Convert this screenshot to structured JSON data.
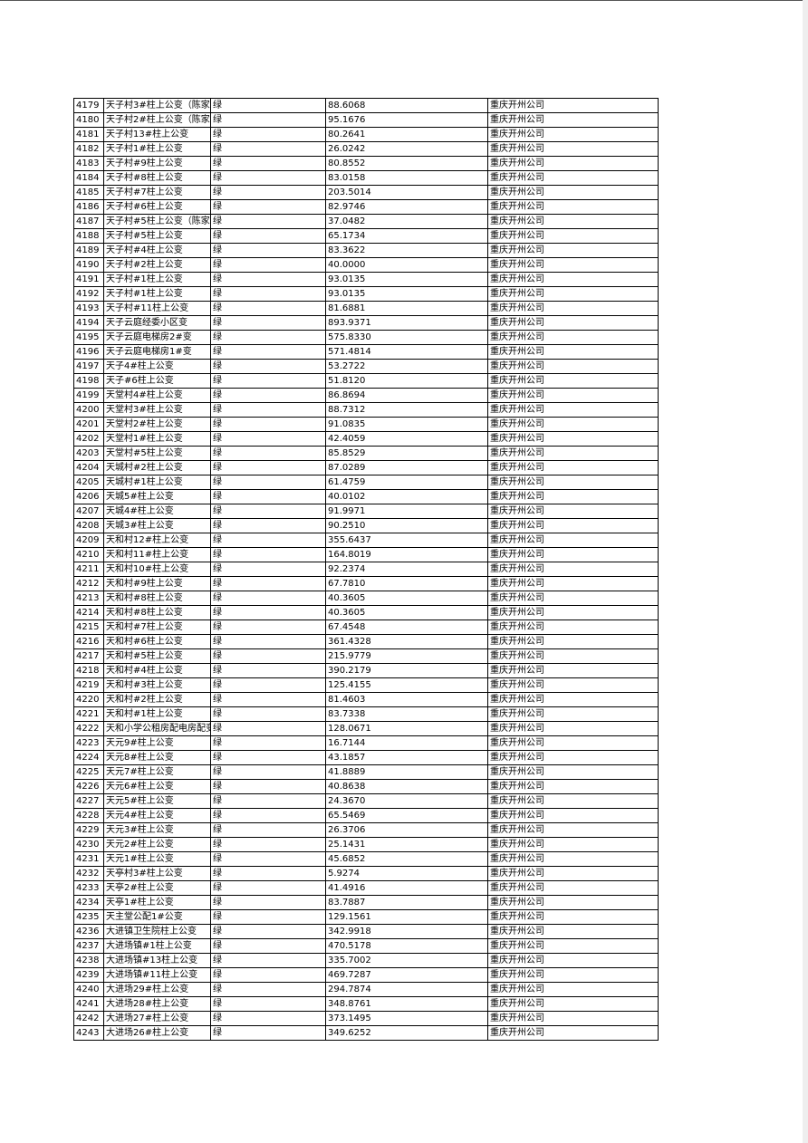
{
  "table": {
    "rows": [
      [
        "4179",
        "天子村3#柱上公变（陈家",
        "绿",
        "88.6068",
        "重庆开州公司"
      ],
      [
        "4180",
        "天子村2#柱上公变（陈家",
        "绿",
        "95.1676",
        "重庆开州公司"
      ],
      [
        "4181",
        "天子村13#柱上公变",
        "绿",
        "80.2641",
        "重庆开州公司"
      ],
      [
        "4182",
        "天子村1#柱上公变",
        "绿",
        "26.0242",
        "重庆开州公司"
      ],
      [
        "4183",
        "天子村#9柱上公变",
        "绿",
        "80.8552",
        "重庆开州公司"
      ],
      [
        "4184",
        "天子村#8柱上公变",
        "绿",
        "83.0158",
        "重庆开州公司"
      ],
      [
        "4185",
        "天子村#7柱上公变",
        "绿",
        "203.5014",
        "重庆开州公司"
      ],
      [
        "4186",
        "天子村#6柱上公变",
        "绿",
        "82.9746",
        "重庆开州公司"
      ],
      [
        "4187",
        "天子村#5柱上公变（陈家",
        "绿",
        "37.0482",
        "重庆开州公司"
      ],
      [
        "4188",
        "天子村#5柱上公变",
        "绿",
        "65.1734",
        "重庆开州公司"
      ],
      [
        "4189",
        "天子村#4柱上公变",
        "绿",
        "83.3622",
        "重庆开州公司"
      ],
      [
        "4190",
        "天子村#2柱上公变",
        "绿",
        "40.0000",
        "重庆开州公司"
      ],
      [
        "4191",
        "天子村#1柱上公变",
        "绿",
        "93.0135",
        "重庆开州公司"
      ],
      [
        "4192",
        "天子村#1柱上公变",
        "绿",
        "93.0135",
        "重庆开州公司"
      ],
      [
        "4193",
        "天子村#11柱上公变",
        "绿",
        "81.6881",
        "重庆开州公司"
      ],
      [
        "4194",
        "天子云庭经委小区变",
        "绿",
        "893.9371",
        "重庆开州公司"
      ],
      [
        "4195",
        "天子云庭电梯房2#变",
        "绿",
        "575.8330",
        "重庆开州公司"
      ],
      [
        "4196",
        "天子云庭电梯房1#变",
        "绿",
        "571.4814",
        "重庆开州公司"
      ],
      [
        "4197",
        "天子4#柱上公变",
        "绿",
        "53.2722",
        "重庆开州公司"
      ],
      [
        "4198",
        "天子#6柱上公变",
        "绿",
        "51.8120",
        "重庆开州公司"
      ],
      [
        "4199",
        "天堂村4#柱上公变",
        "绿",
        "86.8694",
        "重庆开州公司"
      ],
      [
        "4200",
        "天堂村3#柱上公变",
        "绿",
        "88.7312",
        "重庆开州公司"
      ],
      [
        "4201",
        "天堂村2#柱上公变",
        "绿",
        "91.0835",
        "重庆开州公司"
      ],
      [
        "4202",
        "天堂村1#柱上公变",
        "绿",
        "42.4059",
        "重庆开州公司"
      ],
      [
        "4203",
        "天堂村#5柱上公变",
        "绿",
        "85.8529",
        "重庆开州公司"
      ],
      [
        "4204",
        "天城村#2柱上公变",
        "绿",
        "87.0289",
        "重庆开州公司"
      ],
      [
        "4205",
        "天城村#1柱上公变",
        "绿",
        "61.4759",
        "重庆开州公司"
      ],
      [
        "4206",
        "天城5#柱上公变",
        "绿",
        "40.0102",
        "重庆开州公司"
      ],
      [
        "4207",
        "天城4#柱上公变",
        "绿",
        "91.9971",
        "重庆开州公司"
      ],
      [
        "4208",
        "天城3#柱上公变",
        "绿",
        "90.2510",
        "重庆开州公司"
      ],
      [
        "4209",
        "天和村12#柱上公变",
        "绿",
        "355.6437",
        "重庆开州公司"
      ],
      [
        "4210",
        "天和村11#柱上公变",
        "绿",
        "164.8019",
        "重庆开州公司"
      ],
      [
        "4211",
        "天和村10#柱上公变",
        "绿",
        "92.2374",
        "重庆开州公司"
      ],
      [
        "4212",
        "天和村#9柱上公变",
        "绿",
        "67.7810",
        "重庆开州公司"
      ],
      [
        "4213",
        "天和村#8柱上公变",
        "绿",
        "40.3605",
        "重庆开州公司"
      ],
      [
        "4214",
        "天和村#8柱上公变",
        "绿",
        "40.3605",
        "重庆开州公司"
      ],
      [
        "4215",
        "天和村#7柱上公变",
        "绿",
        "67.4548",
        "重庆开州公司"
      ],
      [
        "4216",
        "天和村#6柱上公变",
        "绿",
        "361.4328",
        "重庆开州公司"
      ],
      [
        "4217",
        "天和村#5柱上公变",
        "绿",
        "215.9779",
        "重庆开州公司"
      ],
      [
        "4218",
        "天和村#4柱上公变",
        "绿",
        "390.2179",
        "重庆开州公司"
      ],
      [
        "4219",
        "天和村#3柱上公变",
        "绿",
        "125.4155",
        "重庆开州公司"
      ],
      [
        "4220",
        "天和村#2柱上公变",
        "绿",
        "81.4603",
        "重庆开州公司"
      ],
      [
        "4221",
        "天和村#1柱上公变",
        "绿",
        "83.7338",
        "重庆开州公司"
      ],
      [
        "4222",
        "天和小学公租房配电房配变",
        "绿",
        "128.0671",
        "重庆开州公司"
      ],
      [
        "4223",
        "天元9#柱上公变",
        "绿",
        "16.7144",
        "重庆开州公司"
      ],
      [
        "4224",
        "天元8#柱上公变",
        "绿",
        "43.1857",
        "重庆开州公司"
      ],
      [
        "4225",
        "天元7#柱上公变",
        "绿",
        "41.8889",
        "重庆开州公司"
      ],
      [
        "4226",
        "天元6#柱上公变",
        "绿",
        "40.8638",
        "重庆开州公司"
      ],
      [
        "4227",
        "天元5#柱上公变",
        "绿",
        "24.3670",
        "重庆开州公司"
      ],
      [
        "4228",
        "天元4#柱上公变",
        "绿",
        "65.5469",
        "重庆开州公司"
      ],
      [
        "4229",
        "天元3#柱上公变",
        "绿",
        "26.3706",
        "重庆开州公司"
      ],
      [
        "4230",
        "天元2#柱上公变",
        "绿",
        "25.1431",
        "重庆开州公司"
      ],
      [
        "4231",
        "天元1#柱上公变",
        "绿",
        "45.6852",
        "重庆开州公司"
      ],
      [
        "4232",
        "天亭村3#柱上公变",
        "绿",
        "5.9274",
        "重庆开州公司"
      ],
      [
        "4233",
        "天亭2#柱上公变",
        "绿",
        "41.4916",
        "重庆开州公司"
      ],
      [
        "4234",
        "天亭1#柱上公变",
        "绿",
        "83.7887",
        "重庆开州公司"
      ],
      [
        "4235",
        "天主堂公配1#公变",
        "绿",
        "129.1561",
        "重庆开州公司"
      ],
      [
        "4236",
        "大进镇卫生院柱上公变",
        "绿",
        "342.9918",
        "重庆开州公司"
      ],
      [
        "4237",
        "大进场镇#1柱上公变",
        "绿",
        "470.5178",
        "重庆开州公司"
      ],
      [
        "4238",
        "大进场镇#13柱上公变",
        "绿",
        "335.7002",
        "重庆开州公司"
      ],
      [
        "4239",
        "大进场镇#11柱上公变",
        "绿",
        "469.7287",
        "重庆开州公司"
      ],
      [
        "4240",
        "大进场29#柱上公变",
        "绿",
        "294.7874",
        "重庆开州公司"
      ],
      [
        "4241",
        "大进场28#柱上公变",
        "绿",
        "348.8761",
        "重庆开州公司"
      ],
      [
        "4242",
        "大进场27#柱上公变",
        "绿",
        "373.1495",
        "重庆开州公司"
      ],
      [
        "4243",
        "大进场26#柱上公变",
        "绿",
        "349.6252",
        "重庆开州公司"
      ]
    ]
  }
}
